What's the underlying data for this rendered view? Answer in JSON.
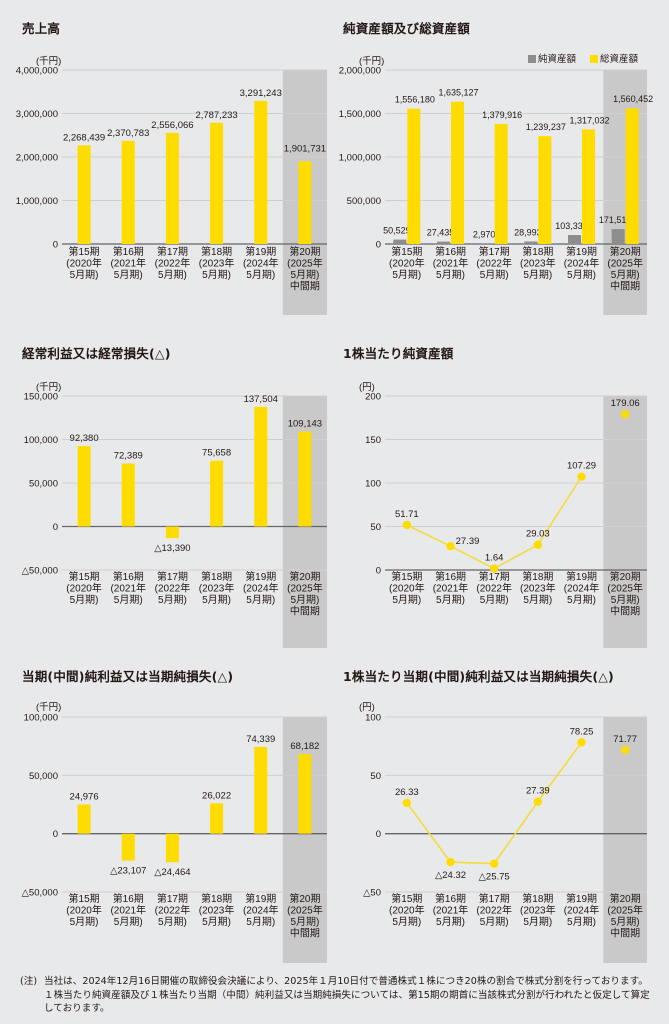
{
  "colors": {
    "background": "#e8e9eb",
    "bar_yellow": "#ffdc00",
    "bar_gray": "#8d8d8d",
    "highlight_column": "#c9c9c9",
    "gridline": "#cfcfcf",
    "axis": "#666666",
    "line_yellow": "#f3dc3c"
  },
  "categories": [
    [
      "第15期",
      "(2020年",
      "5月期)"
    ],
    [
      "第16期",
      "(2021年",
      "5月期)"
    ],
    [
      "第17期",
      "(2022年",
      "5月期)"
    ],
    [
      "第18期",
      "(2023年",
      "5月期)"
    ],
    [
      "第19期",
      "(2024年",
      "5月期)"
    ],
    [
      "第20期",
      "(2025年",
      "5月期)",
      "中間期"
    ]
  ],
  "chart_data": [
    {
      "id": "sales",
      "type": "bar",
      "title": "売上高",
      "unit": "(千円)",
      "categories": [
        "第15期(2020年5月期)",
        "第16期(2021年5月期)",
        "第17期(2022年5月期)",
        "第18期(2023年5月期)",
        "第19期(2024年5月期)",
        "第20期(2025年5月期)中間期"
      ],
      "series": [
        {
          "name": "売上高",
          "values": [
            2268439,
            2370783,
            2556066,
            2787233,
            3291243,
            1901731
          ]
        }
      ],
      "labels": [
        "2,268,439",
        "2,370,783",
        "2,556,066",
        "2,787,233",
        "3,291,243",
        "1,901,731"
      ],
      "ylim": [
        0,
        4000000
      ],
      "yticks": [
        0,
        1000000,
        2000000,
        3000000,
        4000000
      ],
      "ytick_labels": [
        "0",
        "1,000,000",
        "2,000,000",
        "3,000,000",
        "4,000,000"
      ],
      "highlight_last": true,
      "grid": true
    },
    {
      "id": "assets",
      "type": "bar",
      "title": "純資産額及び総資産額",
      "unit": "(千円)",
      "legend": [
        "純資産額",
        "総資産額"
      ],
      "legend_position": "top-right",
      "categories": [
        "第15期(2020年5月期)",
        "第16期(2021年5月期)",
        "第17期(2022年5月期)",
        "第18期(2023年5月期)",
        "第19期(2024年5月期)",
        "第20期(2025年5月期)中間期"
      ],
      "series": [
        {
          "name": "純資産額",
          "values": [
            50529,
            27435,
            2970,
            28993,
            103332,
            171514
          ],
          "labels": [
            "50,529",
            "27,435",
            "2,970",
            "28,993",
            "103,332",
            "171,514"
          ]
        },
        {
          "name": "総資産額",
          "values": [
            1556180,
            1635127,
            1379916,
            1239237,
            1317032,
            1560452
          ],
          "labels": [
            "1,556,180",
            "1,635,127",
            "1,379,916",
            "1,239,237",
            "1,317,032",
            "1,560,452"
          ]
        }
      ],
      "ylim": [
        0,
        2000000
      ],
      "yticks": [
        0,
        500000,
        1000000,
        1500000,
        2000000
      ],
      "ytick_labels": [
        "0",
        "500,000",
        "1,000,000",
        "1,500,000",
        "2,000,000"
      ],
      "highlight_last": true,
      "grid": true
    },
    {
      "id": "ordinary_income",
      "type": "bar",
      "title": "経常利益又は経常損失(△)",
      "unit": "(千円)",
      "categories": [
        "第15期(2020年5月期)",
        "第16期(2021年5月期)",
        "第17期(2022年5月期)",
        "第18期(2023年5月期)",
        "第19期(2024年5月期)",
        "第20期(2025年5月期)中間期"
      ],
      "series": [
        {
          "name": "経常利益",
          "values": [
            92380,
            72389,
            -13390,
            75658,
            137504,
            109143
          ]
        }
      ],
      "labels": [
        "92,380",
        "72,389",
        "△13,390",
        "75,658",
        "137,504",
        "109,143"
      ],
      "ylim": [
        -50000,
        150000
      ],
      "yticks": [
        -50000,
        0,
        50000,
        100000,
        150000
      ],
      "ytick_labels": [
        "△50,000",
        "0",
        "50,000",
        "100,000",
        "150,000"
      ],
      "highlight_last": true,
      "grid": true
    },
    {
      "id": "bps",
      "type": "line",
      "title": "1株当たり純資産額",
      "unit": "(円)",
      "categories": [
        "第15期(2020年5月期)",
        "第16期(2021年5月期)",
        "第17期(2022年5月期)",
        "第18期(2023年5月期)",
        "第19期(2024年5月期)",
        "第20期(2025年5月期)中間期"
      ],
      "series": [
        {
          "name": "1株当たり純資産額",
          "values": [
            51.71,
            27.39,
            1.64,
            29.03,
            107.29,
            179.06
          ]
        }
      ],
      "labels": [
        "51.71",
        "27.39",
        "1.64",
        "29.03",
        "107.29",
        "179.06"
      ],
      "ylim": [
        0,
        200
      ],
      "yticks": [
        0,
        50,
        100,
        150,
        200
      ],
      "ytick_labels": [
        "0",
        "50",
        "100",
        "150",
        "200"
      ],
      "highlight_last": true,
      "last_point_unconnected": true,
      "grid": true
    },
    {
      "id": "net_income",
      "type": "bar",
      "title": "当期(中間)純利益又は当期純損失(△)",
      "unit": "(千円)",
      "categories": [
        "第15期(2020年5月期)",
        "第16期(2021年5月期)",
        "第17期(2022年5月期)",
        "第18期(2023年5月期)",
        "第19期(2024年5月期)",
        "第20期(2025年5月期)中間期"
      ],
      "series": [
        {
          "name": "当期純利益",
          "values": [
            24976,
            -23107,
            -24464,
            26022,
            74339,
            68182
          ]
        }
      ],
      "labels": [
        "24,976",
        "△23,107",
        "△24,464",
        "26,022",
        "74,339",
        "68,182"
      ],
      "ylim": [
        -50000,
        100000
      ],
      "yticks": [
        -50000,
        0,
        50000,
        100000
      ],
      "ytick_labels": [
        "△50,000",
        "0",
        "50,000",
        "100,000"
      ],
      "highlight_last": true,
      "grid": true
    },
    {
      "id": "eps",
      "type": "line",
      "title": "1株当たり当期(中間)純利益又は当期純損失(△)",
      "unit": "(円)",
      "categories": [
        "第15期(2020年5月期)",
        "第16期(2021年5月期)",
        "第17期(2022年5月期)",
        "第18期(2023年5月期)",
        "第19期(2024年5月期)",
        "第20期(2025年5月期)中間期"
      ],
      "series": [
        {
          "name": "1株当たり当期純利益",
          "values": [
            26.33,
            -24.32,
            -25.75,
            27.39,
            78.25,
            71.77
          ]
        }
      ],
      "labels": [
        "26.33",
        "△24.32",
        "△25.75",
        "27.39",
        "78.25",
        "71.77"
      ],
      "ylim": [
        -50,
        100
      ],
      "yticks": [
        -50,
        0,
        50,
        100
      ],
      "ytick_labels": [
        "△50",
        "0",
        "50",
        "100"
      ],
      "highlight_last": true,
      "last_point_unconnected": true,
      "grid": true
    }
  ],
  "note": {
    "label": "(注)",
    "text": "当社は、2024年12月16日開催の取締役会決議により、2025年１月10日付で普通株式１株につき20株の割合で株式分割を行っております。１株当たり純資産額及び１株当たり当期（中間）純利益又は当期純損失については、第15期の期首に当該株式分割が行われたと仮定して算定しております。"
  }
}
